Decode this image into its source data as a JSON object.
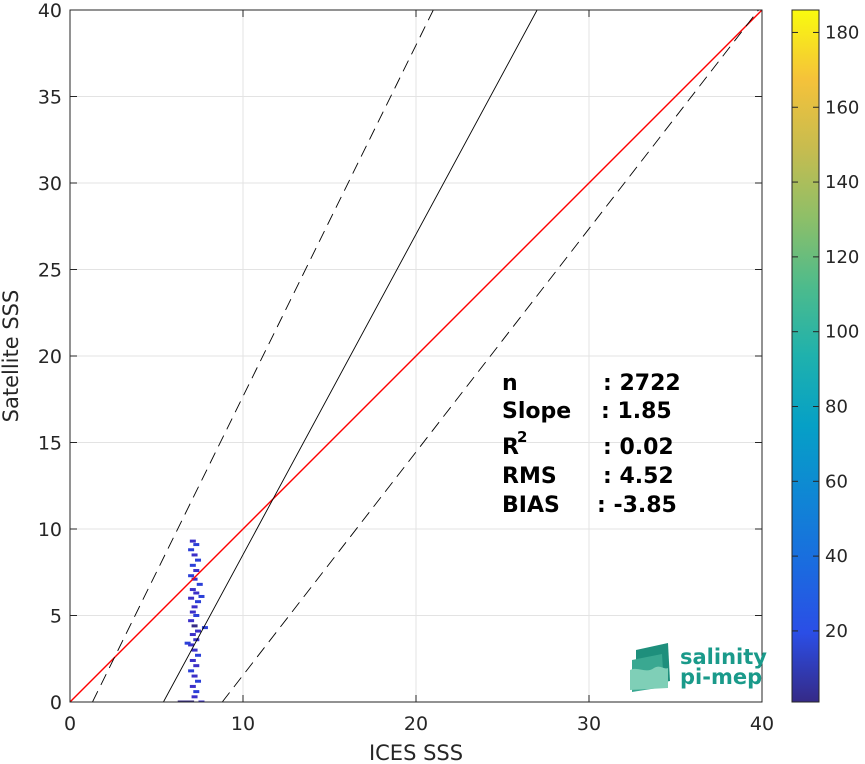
{
  "chart_data": {
    "type": "scatter",
    "xlabel": "ICES SSS",
    "ylabel": "Satellite SSS",
    "xlim": [
      0,
      40
    ],
    "ylim": [
      0,
      40
    ],
    "xticks": [
      0,
      10,
      20,
      30,
      40
    ],
    "yticks": [
      0,
      5,
      10,
      15,
      20,
      25,
      30,
      35,
      40
    ],
    "grid": true,
    "colorbar": {
      "range": [
        1,
        186
      ],
      "ticks": [
        20,
        40,
        60,
        80,
        100,
        120,
        140,
        160,
        180
      ],
      "colormap": "parula"
    },
    "lines": [
      {
        "name": "1:1",
        "style": "solid",
        "color": "#ff0000",
        "x": [
          0,
          40
        ],
        "y": [
          0,
          40
        ]
      },
      {
        "name": "fit",
        "style": "solid",
        "color": "#000000",
        "x": [
          5.4,
          27.0
        ],
        "y": [
          0,
          40
        ]
      },
      {
        "name": "fit-upper",
        "style": "dashed",
        "color": "#000000",
        "x": [
          1.3,
          21.0
        ],
        "y": [
          0,
          40
        ]
      },
      {
        "name": "fit-lower",
        "style": "dashed",
        "color": "#000000",
        "x": [
          8.8,
          39.8
        ],
        "y": [
          0,
          40
        ]
      }
    ],
    "density_points": [
      {
        "x": 7.1,
        "y": 9.3,
        "c": 12
      },
      {
        "x": 7.3,
        "y": 9.1,
        "c": 8
      },
      {
        "x": 7.0,
        "y": 8.8,
        "c": 6
      },
      {
        "x": 7.2,
        "y": 8.5,
        "c": 10
      },
      {
        "x": 7.4,
        "y": 8.2,
        "c": 7
      },
      {
        "x": 7.1,
        "y": 7.9,
        "c": 9
      },
      {
        "x": 7.3,
        "y": 7.6,
        "c": 11
      },
      {
        "x": 7.0,
        "y": 7.3,
        "c": 8
      },
      {
        "x": 7.2,
        "y": 7.1,
        "c": 14
      },
      {
        "x": 7.5,
        "y": 6.8,
        "c": 9
      },
      {
        "x": 7.1,
        "y": 6.5,
        "c": 13
      },
      {
        "x": 7.3,
        "y": 6.3,
        "c": 10
      },
      {
        "x": 7.0,
        "y": 6.0,
        "c": 12
      },
      {
        "x": 7.4,
        "y": 5.8,
        "c": 8
      },
      {
        "x": 7.2,
        "y": 5.5,
        "c": 15
      },
      {
        "x": 7.1,
        "y": 5.2,
        "c": 11
      },
      {
        "x": 7.3,
        "y": 5.0,
        "c": 9
      },
      {
        "x": 7.0,
        "y": 4.7,
        "c": 13
      },
      {
        "x": 7.2,
        "y": 4.4,
        "c": 16
      },
      {
        "x": 7.4,
        "y": 4.1,
        "c": 12
      },
      {
        "x": 7.1,
        "y": 3.9,
        "c": 14
      },
      {
        "x": 7.3,
        "y": 3.6,
        "c": 10
      },
      {
        "x": 7.0,
        "y": 3.3,
        "c": 11
      },
      {
        "x": 7.2,
        "y": 3.0,
        "c": 13
      },
      {
        "x": 7.4,
        "y": 2.7,
        "c": 9
      },
      {
        "x": 7.1,
        "y": 2.4,
        "c": 12
      },
      {
        "x": 7.3,
        "y": 2.1,
        "c": 10
      },
      {
        "x": 7.0,
        "y": 1.8,
        "c": 8
      },
      {
        "x": 7.2,
        "y": 1.5,
        "c": 11
      },
      {
        "x": 7.4,
        "y": 1.2,
        "c": 9
      },
      {
        "x": 7.1,
        "y": 0.9,
        "c": 10
      },
      {
        "x": 7.3,
        "y": 0.6,
        "c": 8
      },
      {
        "x": 7.2,
        "y": 0.3,
        "c": 12
      },
      {
        "x": 6.4,
        "y": 0.0,
        "c": 20
      },
      {
        "x": 6.7,
        "y": 0.0,
        "c": 18
      },
      {
        "x": 7.0,
        "y": 0.0,
        "c": 16
      },
      {
        "x": 7.6,
        "y": 0.0,
        "c": 14
      },
      {
        "x": 7.8,
        "y": 4.3,
        "c": 7
      },
      {
        "x": 6.8,
        "y": 3.4,
        "c": 6
      },
      {
        "x": 7.6,
        "y": 6.1,
        "c": 7
      }
    ]
  },
  "stats": [
    {
      "label": "n",
      "value": ": 2722"
    },
    {
      "label": "Slope",
      "value": ": 1.85"
    },
    {
      "label": "R",
      "value": ": 0.02",
      "sup": "2"
    },
    {
      "label": "RMS",
      "value": ": 4.52"
    },
    {
      "label": "BIAS",
      "value": ": -3.85"
    }
  ],
  "logo": {
    "line1": "salinity",
    "line2": "pi-mep"
  },
  "colors": {
    "one_to_one": "#ff0000",
    "fit": "#000000",
    "grid": "#e3e3e3",
    "axis": "#262626"
  }
}
